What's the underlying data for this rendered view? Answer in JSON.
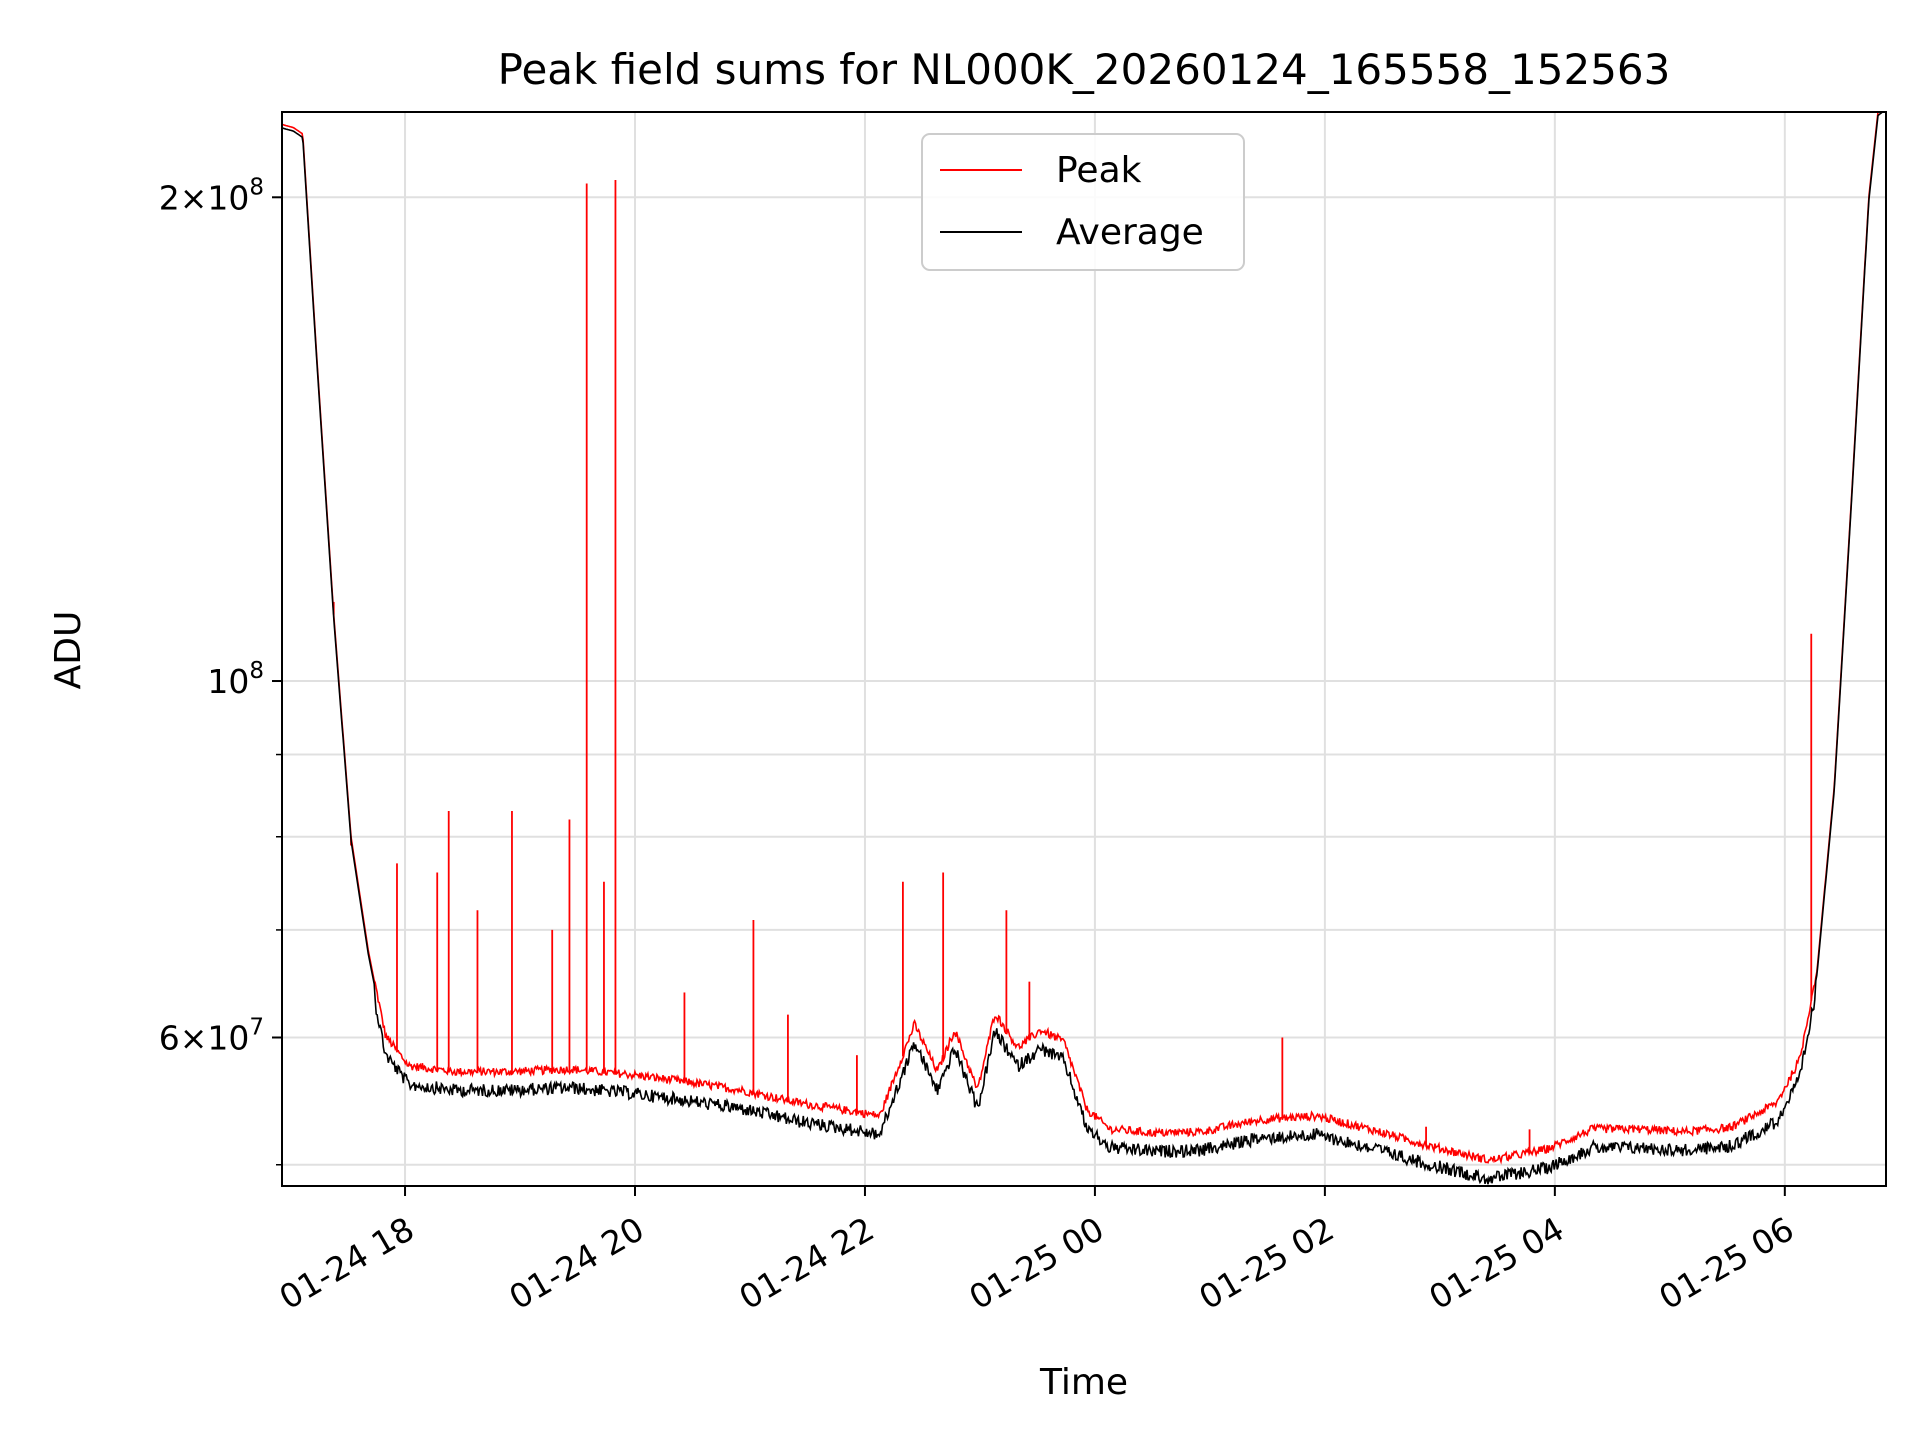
{
  "chart_data": {
    "type": "line",
    "title": "Peak field sums for NL000K_20260124_165558_152563",
    "xlabel": "Time",
    "ylabel": "ADU",
    "yscale": "log",
    "ylim": [
      48500000,
      226000000
    ],
    "xlim_hours_from_start": [
      0,
      13.95
    ],
    "grid": true,
    "legend_position": "top-center",
    "x_ticks": [
      {
        "h": 1.07,
        "label": "01-24 18"
      },
      {
        "h": 3.07,
        "label": "01-24 20"
      },
      {
        "h": 5.07,
        "label": "01-24 22"
      },
      {
        "h": 7.07,
        "label": "01-25 00"
      },
      {
        "h": 9.07,
        "label": "01-25 02"
      },
      {
        "h": 11.07,
        "label": "01-25 04"
      },
      {
        "h": 13.07,
        "label": "01-25 06"
      }
    ],
    "y_ticks": [
      {
        "value": 200000000,
        "mantissa": "2×10",
        "exp": "8"
      },
      {
        "value": 100000000,
        "mantissa": "10",
        "exp": "8"
      },
      {
        "value": 60000000,
        "mantissa": "6×10",
        "exp": "7"
      }
    ],
    "y_minor_ticks": [
      50000000,
      70000000,
      80000000,
      90000000
    ],
    "series": [
      {
        "name": "Peak",
        "color": "#ff0000",
        "baseline_points": [
          [
            0.0,
            222000000
          ],
          [
            0.1,
            221000000
          ],
          [
            0.18,
            219000000
          ],
          [
            0.3,
            160000000
          ],
          [
            0.45,
            110000000
          ],
          [
            0.6,
            80000000
          ],
          [
            0.75,
            68000000
          ],
          [
            0.9,
            60000000
          ],
          [
            1.1,
            57500000
          ],
          [
            1.5,
            57000000
          ],
          [
            2.0,
            57000000
          ],
          [
            2.5,
            57200000
          ],
          [
            3.0,
            56800000
          ],
          [
            3.5,
            56200000
          ],
          [
            4.0,
            55500000
          ],
          [
            4.5,
            54500000
          ],
          [
            5.0,
            53800000
          ],
          [
            5.2,
            53500000
          ],
          [
            5.5,
            61000000
          ],
          [
            5.7,
            57000000
          ],
          [
            5.85,
            60500000
          ],
          [
            6.05,
            55500000
          ],
          [
            6.2,
            62000000
          ],
          [
            6.4,
            59000000
          ],
          [
            6.6,
            60500000
          ],
          [
            6.8,
            59500000
          ],
          [
            7.0,
            54000000
          ],
          [
            7.2,
            52500000
          ],
          [
            7.6,
            52200000
          ],
          [
            8.0,
            52300000
          ],
          [
            8.5,
            53200000
          ],
          [
            9.0,
            53500000
          ],
          [
            9.5,
            52400000
          ],
          [
            10.0,
            51200000
          ],
          [
            10.5,
            50200000
          ],
          [
            11.0,
            51000000
          ],
          [
            11.4,
            52500000
          ],
          [
            11.8,
            52500000
          ],
          [
            12.2,
            52300000
          ],
          [
            12.6,
            52600000
          ],
          [
            13.0,
            54500000
          ],
          [
            13.2,
            58000000
          ],
          [
            13.35,
            66000000
          ],
          [
            13.5,
            86000000
          ],
          [
            13.65,
            130000000
          ],
          [
            13.8,
            200000000
          ],
          [
            13.88,
            226000000
          ],
          [
            13.95,
            228000000
          ]
        ],
        "spikes": [
          [
            0.45,
            112000000
          ],
          [
            0.6,
            79000000
          ],
          [
            1.0,
            77000000
          ],
          [
            1.35,
            76000000
          ],
          [
            1.45,
            83000000
          ],
          [
            1.7,
            72000000
          ],
          [
            2.0,
            83000000
          ],
          [
            2.35,
            70000000
          ],
          [
            2.5,
            82000000
          ],
          [
            2.65,
            204000000
          ],
          [
            2.8,
            75000000
          ],
          [
            2.9,
            205000000
          ],
          [
            3.5,
            64000000
          ],
          [
            4.1,
            71000000
          ],
          [
            4.4,
            62000000
          ],
          [
            5.0,
            58500000
          ],
          [
            5.4,
            75000000
          ],
          [
            5.75,
            76000000
          ],
          [
            6.3,
            72000000
          ],
          [
            6.5,
            65000000
          ],
          [
            8.7,
            60000000
          ],
          [
            9.95,
            52800000
          ],
          [
            10.85,
            52600000
          ],
          [
            13.3,
            107000000
          ]
        ]
      },
      {
        "name": "Average",
        "color": "#000000",
        "note": "follows the Peak baseline with slightly lower values and dense noise"
      }
    ]
  }
}
